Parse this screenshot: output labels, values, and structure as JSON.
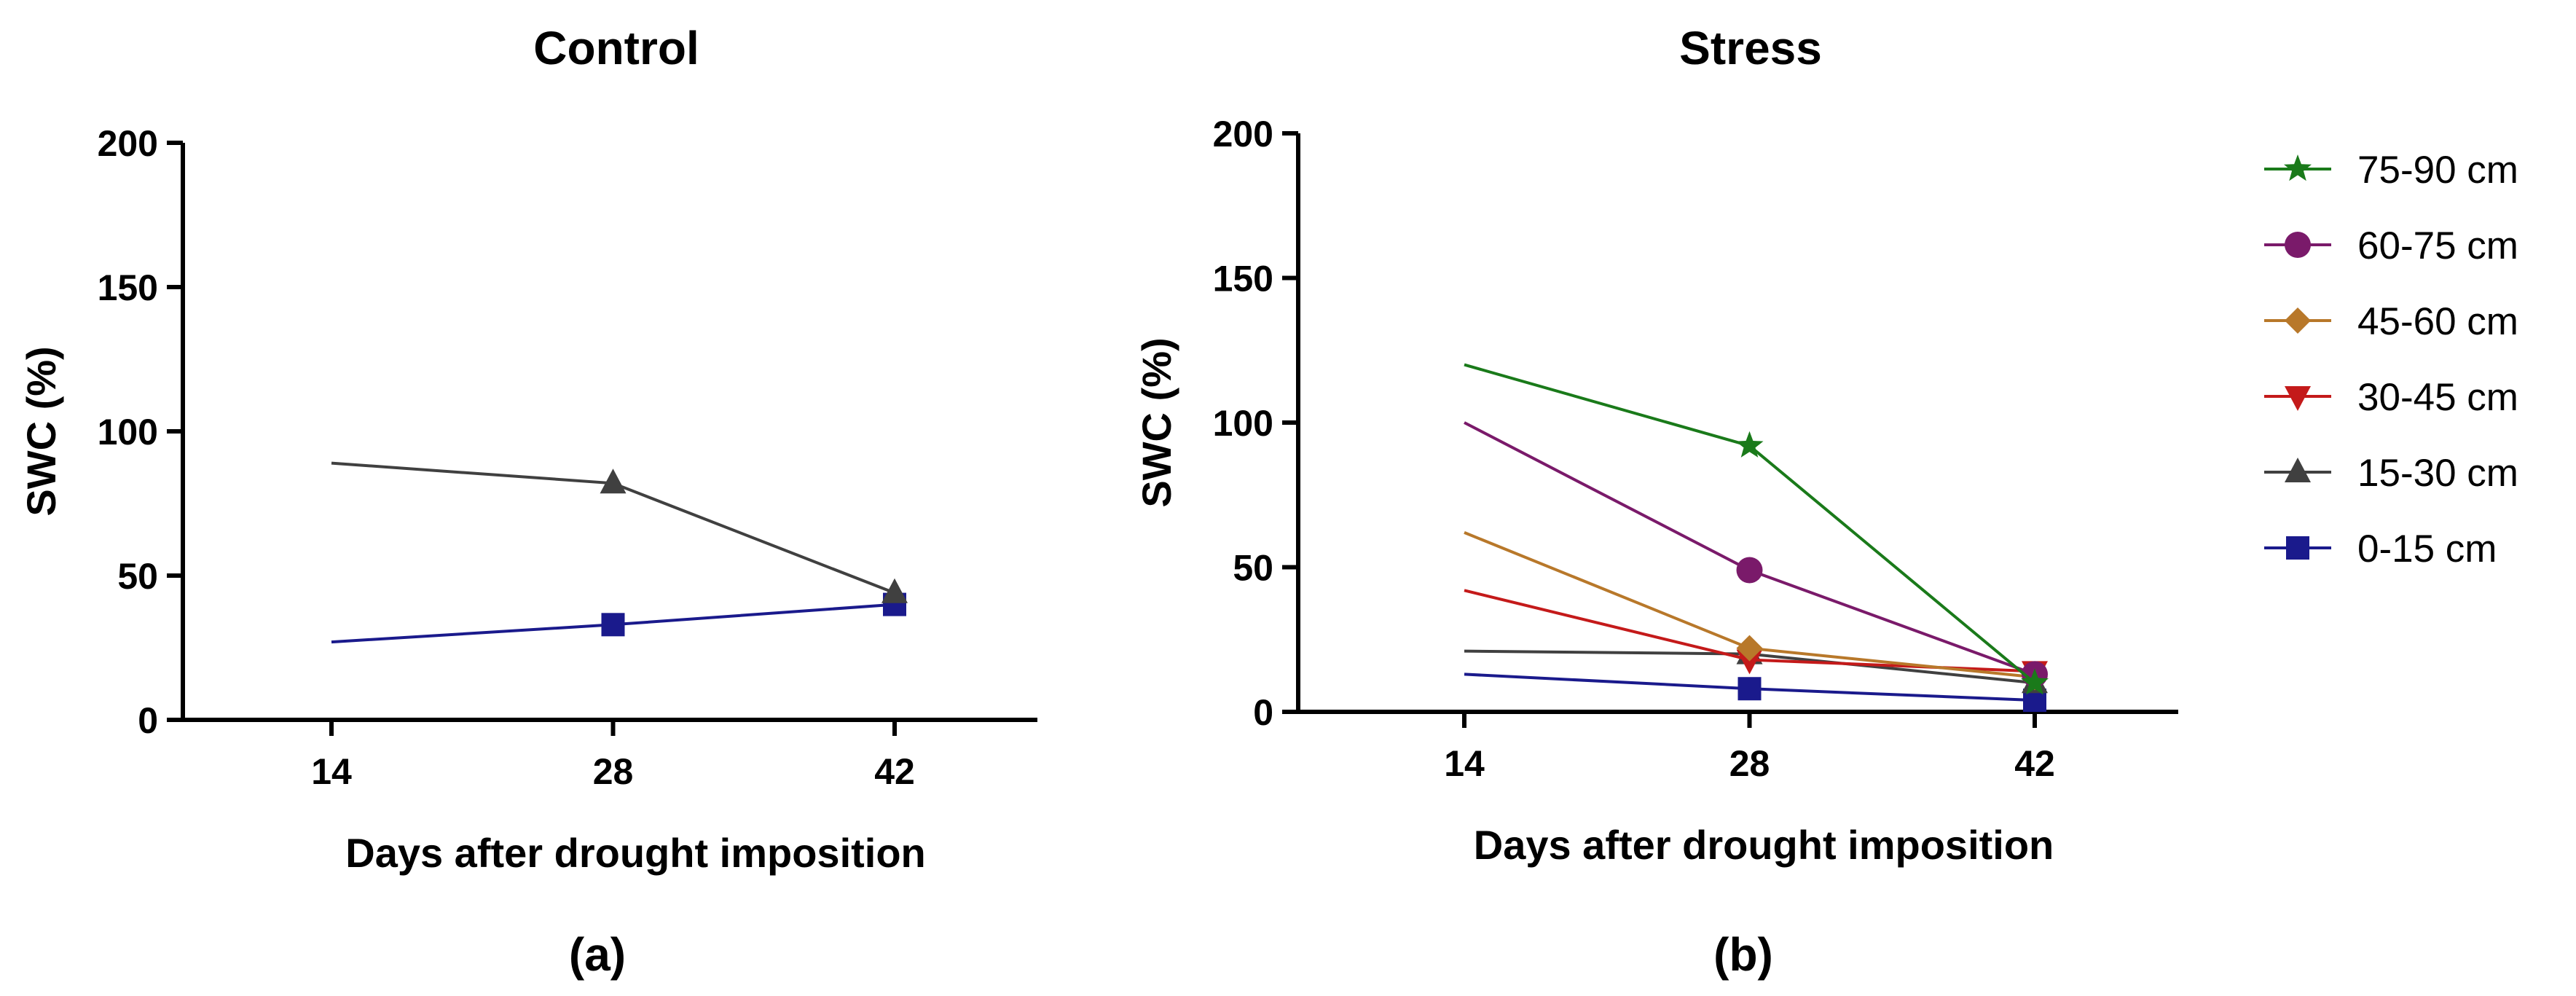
{
  "chart_data": [
    {
      "type": "line",
      "panel_label": "(a)",
      "title": "Control",
      "xlabel": "Days after drought imposition",
      "ylabel": "SWC (%)",
      "x": [
        14,
        28,
        42
      ],
      "x_tick_labels": [
        "14",
        "28",
        "42"
      ],
      "ylim": [
        0,
        200
      ],
      "y_ticks": [
        0,
        50,
        100,
        150,
        200
      ],
      "grid": false,
      "series": [
        {
          "name": "15-30 cm",
          "values": [
            89,
            82,
            44
          ],
          "color": "#404040",
          "marker": "triangle"
        },
        {
          "name": "0-15 cm",
          "values": [
            27,
            33,
            40
          ],
          "color": "#1a1a8c",
          "marker": "square"
        }
      ]
    },
    {
      "type": "line",
      "panel_label": "(b)",
      "title": "Stress",
      "xlabel": "Days after drought imposition",
      "ylabel": "SWC (%)",
      "x": [
        14,
        28,
        42
      ],
      "x_tick_labels": [
        "14",
        "28",
        "42"
      ],
      "ylim": [
        0,
        200
      ],
      "y_ticks": [
        0,
        50,
        100,
        150,
        200
      ],
      "grid": false,
      "legend_position": "right",
      "series": [
        {
          "name": "75-90 cm",
          "values": [
            120,
            92,
            10
          ],
          "color": "#1a7a1a",
          "marker": "star"
        },
        {
          "name": "60-75 cm",
          "values": [
            100,
            49,
            13
          ],
          "color": "#7a1a6a",
          "marker": "circle"
        },
        {
          "name": "45-60 cm",
          "values": [
            62,
            22,
            12
          ],
          "color": "#b8782a",
          "marker": "diamond"
        },
        {
          "name": "30-45 cm",
          "values": [
            42,
            18,
            14
          ],
          "color": "#c41a1a",
          "marker": "triangle-down"
        },
        {
          "name": "15-30 cm",
          "values": [
            21,
            20,
            10
          ],
          "color": "#404040",
          "marker": "triangle"
        },
        {
          "name": "0-15 cm",
          "values": [
            13,
            8,
            4
          ],
          "color": "#1a1a8c",
          "marker": "square"
        }
      ]
    }
  ]
}
